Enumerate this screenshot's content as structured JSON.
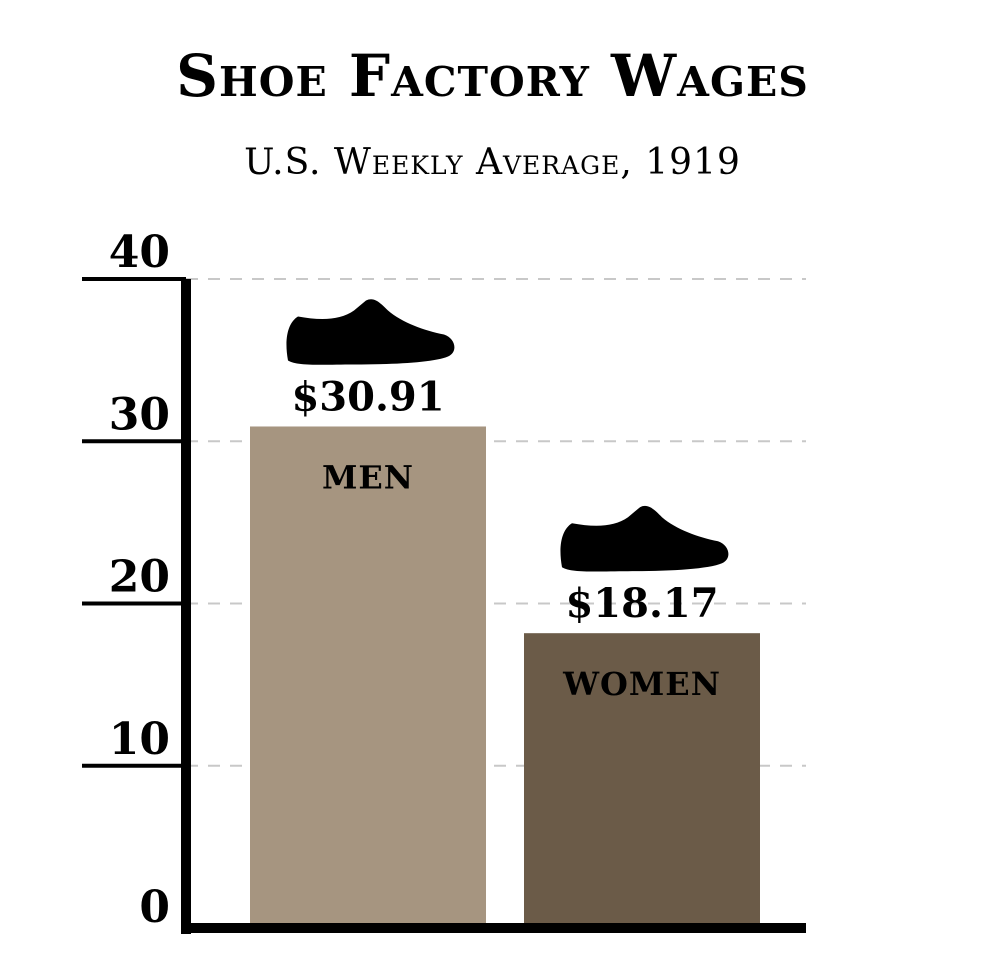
{
  "chart_data": {
    "type": "bar",
    "title": "Shoe Factory Wages",
    "subtitle": "U.S. Weekly Average, 1919",
    "categories": [
      "MEN",
      "WOMEN"
    ],
    "values": [
      30.91,
      18.17
    ],
    "value_labels": [
      "$30.91",
      "$18.17"
    ],
    "ylim": [
      0,
      40
    ],
    "yticks": [
      0,
      10,
      20,
      30,
      40
    ],
    "grid": true,
    "colors": [
      "#a69580",
      "#6b5b48"
    ],
    "icons": [
      "shoe-icon",
      "shoe-icon"
    ]
  }
}
